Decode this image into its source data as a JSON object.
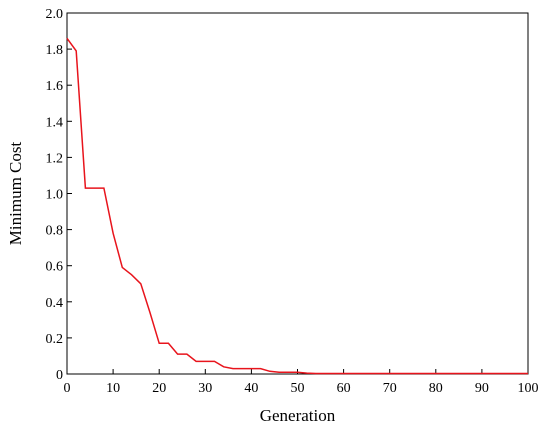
{
  "chart_data": {
    "type": "line",
    "title": "",
    "xlabel": "Generation",
    "ylabel": "Minimum Cost",
    "xlim": [
      0,
      100
    ],
    "ylim": [
      0,
      2.0
    ],
    "xticks": [
      "0",
      "10",
      "20",
      "30",
      "40",
      "50",
      "60",
      "70",
      "80",
      "90",
      "100"
    ],
    "yticks": [
      "0",
      "0.2",
      "0.4",
      "0.6",
      "0.8",
      "1.0",
      "1.2",
      "1.4",
      "1.6",
      "1.8",
      "2.0"
    ],
    "grid": false,
    "legend": "none",
    "series": [
      {
        "color": "#e8141c",
        "x": [
          0,
          2,
          4,
          6,
          8,
          10,
          12,
          14,
          16,
          18,
          20,
          22,
          24,
          26,
          28,
          30,
          32,
          34,
          36,
          38,
          40,
          42,
          44,
          46,
          48,
          50,
          52,
          54,
          60,
          70,
          80,
          90,
          100
        ],
        "y": [
          1.86,
          1.79,
          1.03,
          1.03,
          1.03,
          0.78,
          0.59,
          0.55,
          0.5,
          0.34,
          0.17,
          0.17,
          0.11,
          0.11,
          0.07,
          0.07,
          0.07,
          0.04,
          0.03,
          0.03,
          0.03,
          0.03,
          0.015,
          0.01,
          0.01,
          0.01,
          0.005,
          0.003,
          0.003,
          0.003,
          0.003,
          0.003,
          0.003
        ]
      }
    ]
  }
}
